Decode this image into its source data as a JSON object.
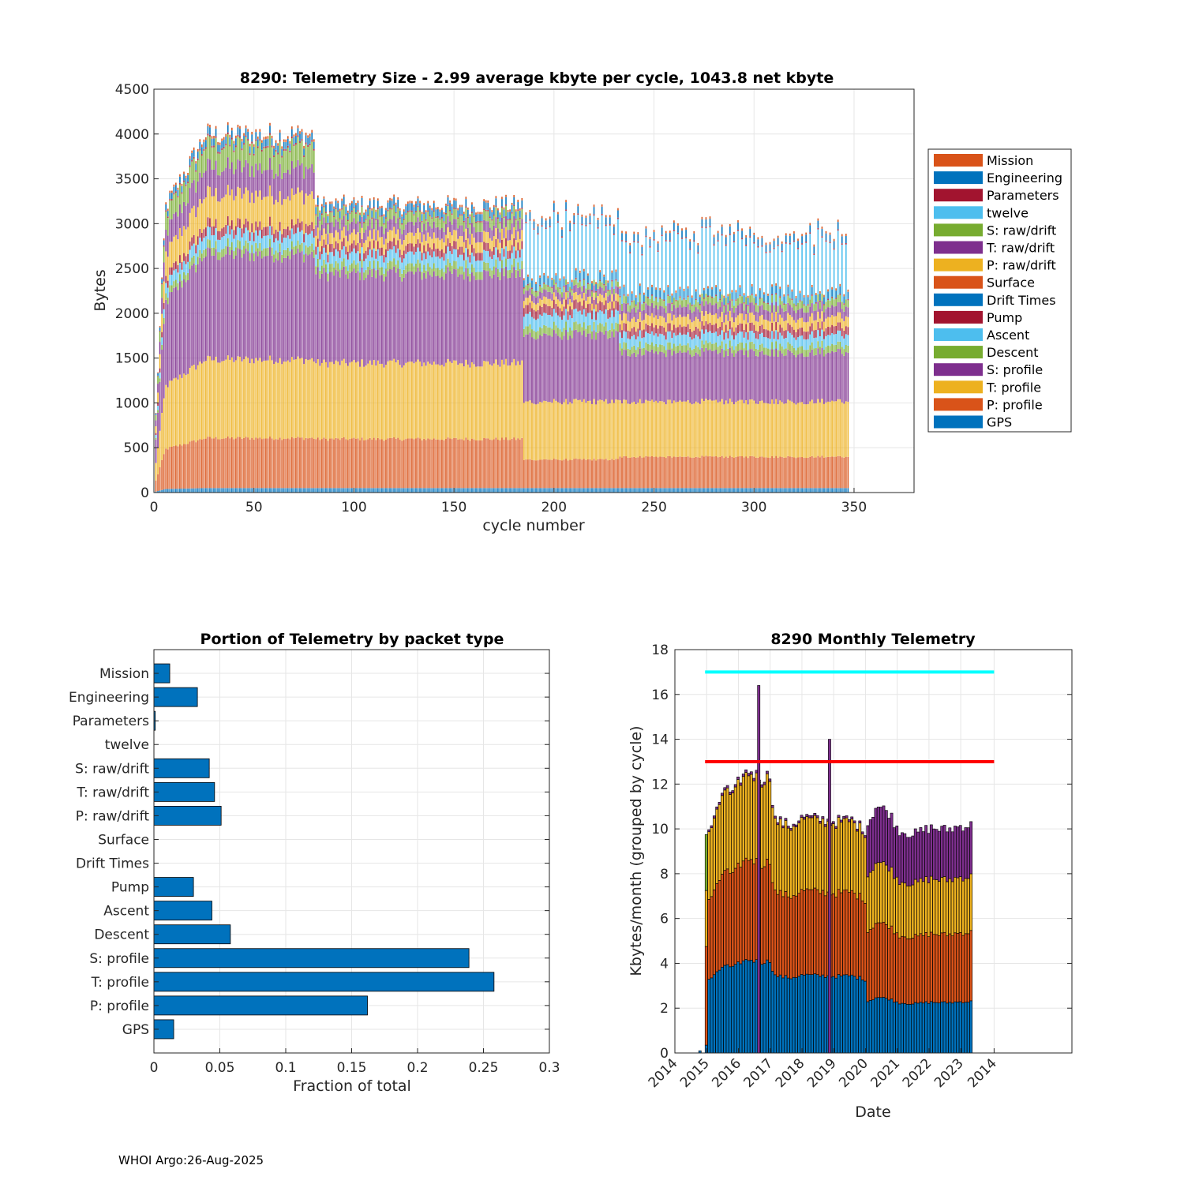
{
  "footer": "WHOI Argo:26-Aug-2025",
  "colors": {
    "blue": "#0072BD",
    "orange": "#D95319",
    "yellow": "#EDB120",
    "purple": "#7E2F8E",
    "green": "#77AC30",
    "cyan": "#4DBEEE",
    "red": "#A2142F",
    "limit_cyan": "#00FFFF",
    "limit_red": "#FF0000"
  },
  "chart_data": [
    {
      "type": "bar",
      "stacked": true,
      "title": "8290: Telemetry Size - 2.99 average kbyte per cycle, 1043.8 net kbyte",
      "xlabel": "cycle number",
      "ylabel": "Bytes",
      "xlim": [
        0,
        380
      ],
      "ylim": [
        0,
        4500
      ],
      "xticks": [
        0,
        50,
        100,
        150,
        200,
        250,
        300,
        350
      ],
      "yticks": [
        0,
        500,
        1000,
        1500,
        2000,
        2500,
        3000,
        3500,
        4000,
        4500
      ],
      "grid": true,
      "legend_placement": "outside-right",
      "legend": [
        "Mission",
        "Engineering",
        "Parameters",
        "twelve",
        "S: raw/drift",
        "T: raw/drift",
        "P: raw/drift",
        "Surface",
        "Drift Times",
        "Pump",
        "Ascent",
        "Descent",
        "S: profile",
        "T: profile",
        "P: profile",
        "GPS"
      ],
      "cycles": [
        1,
        347
      ],
      "typical_stack_by_era": [
        {
          "cycles": "25-80",
          "series": {
            "GPS": 50,
            "P: profile": 560,
            "T: profile": 880,
            "S: profile": 1180,
            "Descent": 90,
            "Ascent": 140,
            "Pump": 100,
            "P: raw/drift": 340,
            "T: raw/drift": 300,
            "S: raw/drift": 250,
            "Parameters": 20,
            "Engineering": 80,
            "Mission": 30
          },
          "total": 3950
        },
        {
          "cycles": "81-184",
          "series": {
            "GPS": 50,
            "P: profile": 550,
            "T: profile": 850,
            "S: profile": 1000,
            "Descent": 90,
            "Ascent": 130,
            "Pump": 90,
            "P: raw/drift": 120,
            "T: raw/drift": 120,
            "S: raw/drift": 110,
            "Parameters": 15,
            "Engineering": 80,
            "Mission": 25
          },
          "total": 3250
        },
        {
          "cycles": "185-232",
          "series": {
            "GPS": 50,
            "P: profile": 320,
            "T: profile": 650,
            "S: profile": 750,
            "Descent": 90,
            "Ascent": 140,
            "Pump": 100,
            "P: raw/drift": 80,
            "T: raw/drift": 80,
            "S: raw/drift": 60,
            "Parameters": 15,
            "Engineering": 80,
            "Mission": 25
          },
          "total": 2450
        },
        {
          "cycles": "233-347",
          "series": {
            "GPS": 50,
            "P: profile": 350,
            "T: profile": 620,
            "S: profile": 550,
            "Descent": 80,
            "Ascent": 120,
            "Pump": 90,
            "P: raw/drift": 110,
            "T: raw/drift": 110,
            "S: raw/drift": 80,
            "Parameters": 15,
            "Engineering": 80,
            "Mission": 25
          },
          "total": 2250
        }
      ]
    },
    {
      "type": "bar",
      "orientation": "horizontal",
      "title": "Portion of Telemetry by packet type",
      "xlabel": "Fraction of total",
      "ylabel": "",
      "xlim": [
        0,
        0.3
      ],
      "xticks": [
        0,
        0.05,
        0.1,
        0.15,
        0.2,
        0.25,
        0.3
      ],
      "xtick_labels": [
        "0",
        "0.05",
        "0.1",
        "0.15",
        "0.2",
        "0.25",
        "0.3"
      ],
      "grid": true,
      "categories": [
        "Mission",
        "Engineering",
        "Parameters",
        "twelve",
        "S: raw/drift",
        "T: raw/drift",
        "P: raw/drift",
        "Surface",
        "Drift Times",
        "Pump",
        "Ascent",
        "Descent",
        "S: profile",
        "T: profile",
        "P: profile",
        "GPS"
      ],
      "values": [
        0.012,
        0.033,
        0.001,
        0.0,
        0.042,
        0.046,
        0.051,
        0.0,
        0.0,
        0.03,
        0.044,
        0.058,
        0.239,
        0.258,
        0.162,
        0.015
      ]
    },
    {
      "type": "bar",
      "stacked": true,
      "title": "8290 Monthly Telemetry",
      "xlabel": "Date",
      "ylabel": "Kbytes/month (grouped by cycle)",
      "ylim": [
        0,
        18
      ],
      "yticks": [
        0,
        2,
        4,
        6,
        8,
        10,
        12,
        14,
        16,
        18
      ],
      "xtick_labels": [
        "2014",
        "2015",
        "2016",
        "2017",
        "2018",
        "2019",
        "2020",
        "2021",
        "2022",
        "2023",
        "2014"
      ],
      "xlim_years": [
        2014,
        2026.5
      ],
      "grid": true,
      "limit_lines": [
        {
          "value": 17,
          "color": "#00FFFF",
          "x_end_year": 2024.05
        },
        {
          "value": 13,
          "color": "#FF0000",
          "x_end_year": 2024.05
        }
      ],
      "spikes": [
        {
          "year": 2016.6,
          "total": 16.4
        },
        {
          "year": 2018.83,
          "total": 14.0
        }
      ],
      "monthly_totals": [
        {
          "year": 2014.75,
          "total": 0.1
        },
        {
          "year": 2014.95,
          "total": 9.8
        },
        {
          "year": 2015.25,
          "total": 10.6
        },
        {
          "year": 2015.5,
          "total": 12.0
        },
        {
          "year": 2015.8,
          "total": 11.5
        },
        {
          "year": 2016.0,
          "total": 12.3
        },
        {
          "year": 2016.3,
          "total": 12.7
        },
        {
          "year": 2016.7,
          "total": 12.3
        },
        {
          "year": 2016.95,
          "total": 12.5
        },
        {
          "year": 2017.1,
          "total": 10.5
        },
        {
          "year": 2017.6,
          "total": 10.2
        },
        {
          "year": 2018.0,
          "total": 10.6
        },
        {
          "year": 2018.5,
          "total": 10.5
        },
        {
          "year": 2019.0,
          "total": 10.4
        },
        {
          "year": 2019.5,
          "total": 10.5
        },
        {
          "year": 2019.95,
          "total": 10.0
        },
        {
          "year": 2020.3,
          "total": 11.1
        },
        {
          "year": 2020.7,
          "total": 10.8
        },
        {
          "year": 2021.0,
          "total": 10.0
        },
        {
          "year": 2021.5,
          "total": 9.8
        },
        {
          "year": 2022.0,
          "total": 10.1
        },
        {
          "year": 2022.5,
          "total": 10.0
        },
        {
          "year": 2023.0,
          "total": 10.2
        },
        {
          "year": 2023.35,
          "total": 10.2
        }
      ],
      "typical_layers_kbytes": {
        "2015-2019": [
          {
            "name": "GPS/P profile (blue)",
            "value": 3.6
          },
          {
            "name": "T profile (orange)",
            "value": 3.9
          },
          {
            "name": "S profile (yellow)",
            "value": 3.3
          },
          {
            "name": "raw/drift (purple)",
            "value": 0.1
          }
        ],
        "2020-2023": [
          {
            "name": "GPS/P profile (blue)",
            "value": 2.3
          },
          {
            "name": "T profile (orange)",
            "value": 3.1
          },
          {
            "name": "S profile (yellow)",
            "value": 2.5
          },
          {
            "name": "raw/drift (purple)",
            "value": 2.3
          }
        ]
      }
    }
  ]
}
